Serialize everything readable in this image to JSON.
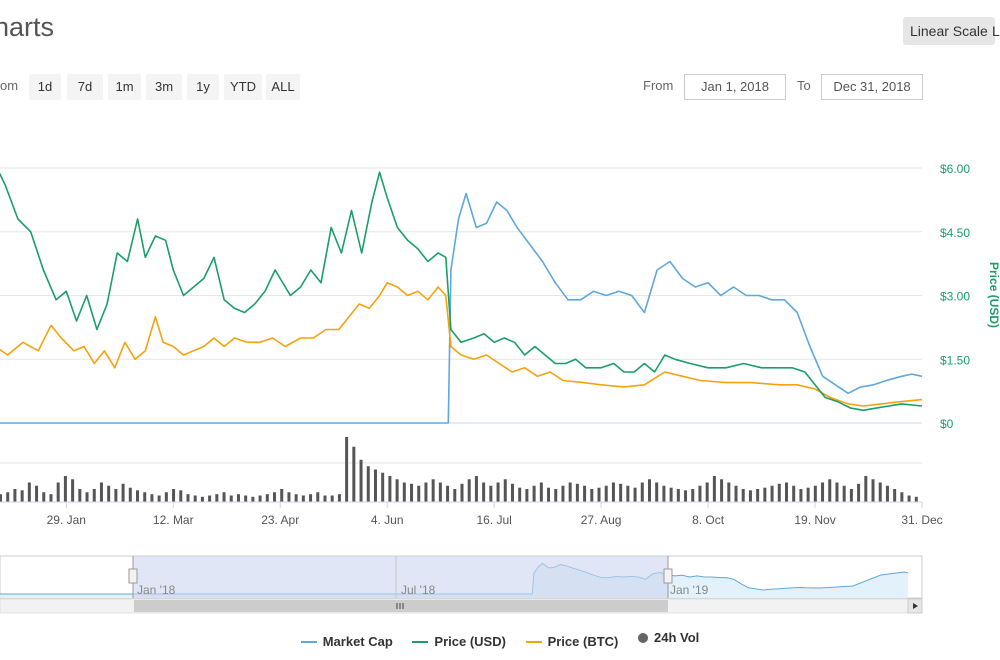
{
  "header": {
    "title": "harts"
  },
  "toolbar": {
    "linear_scale_label": "Linear Scale",
    "log_scale_label": "L",
    "zoom_label": "om",
    "zoom_buttons": [
      "1d",
      "7d",
      "1m",
      "3m",
      "1y",
      "YTD",
      "ALL"
    ],
    "from_label": "From",
    "to_label": "To",
    "from_value": "Jan 1, 2018",
    "to_value": "Dec 31, 2018"
  },
  "legend": {
    "market_cap": "Market Cap",
    "price_usd": "Price (USD)",
    "price_btc": "Price (BTC)",
    "vol": "24h Vol"
  },
  "colors": {
    "market_cap": "#5fa8dc",
    "price_usd": "#1a9e6a",
    "price_btc": "#f5a30c",
    "volume": "#555555",
    "axis_label": "#1a9e6a",
    "navigator_mask": "#ccd5ee"
  },
  "chart_data": {
    "type": "line",
    "y_axis": {
      "label": "Price (USD)",
      "ticks": [
        "$0",
        "$1.50",
        "$3.00",
        "$4.50",
        "$6.00"
      ],
      "ylim": [
        0,
        6.0
      ],
      "position": "right"
    },
    "x_axis": {
      "ticks": [
        "29. Jan",
        "12. Mar",
        "23. Apr",
        "4. Jun",
        "16. Jul",
        "27. Aug",
        "8. Oct",
        "19. Nov",
        "31. Dec"
      ],
      "range": [
        "2018-01-01",
        "2018-12-31"
      ]
    },
    "navigator": {
      "labels": [
        "Jan '18",
        "Jul '18",
        "Jan '19"
      ]
    },
    "series": [
      {
        "name": "Price (USD)",
        "points": [
          [
            "2018-01-01",
            6.1
          ],
          [
            "2018-01-05",
            5.6
          ],
          [
            "2018-01-10",
            4.8
          ],
          [
            "2018-01-15",
            4.5
          ],
          [
            "2018-01-20",
            3.6
          ],
          [
            "2018-01-25",
            2.9
          ],
          [
            "2018-01-29",
            3.1
          ],
          [
            "2018-02-02",
            2.4
          ],
          [
            "2018-02-06",
            3.0
          ],
          [
            "2018-02-10",
            2.2
          ],
          [
            "2018-02-14",
            2.8
          ],
          [
            "2018-02-18",
            4.0
          ],
          [
            "2018-02-22",
            3.8
          ],
          [
            "2018-02-26",
            4.8
          ],
          [
            "2018-03-01",
            3.9
          ],
          [
            "2018-03-05",
            4.4
          ],
          [
            "2018-03-09",
            4.3
          ],
          [
            "2018-03-12",
            3.6
          ],
          [
            "2018-03-16",
            3.0
          ],
          [
            "2018-03-20",
            3.2
          ],
          [
            "2018-03-24",
            3.4
          ],
          [
            "2018-03-28",
            3.9
          ],
          [
            "2018-04-01",
            2.9
          ],
          [
            "2018-04-05",
            2.7
          ],
          [
            "2018-04-09",
            2.6
          ],
          [
            "2018-04-13",
            2.8
          ],
          [
            "2018-04-17",
            3.1
          ],
          [
            "2018-04-21",
            3.6
          ],
          [
            "2018-04-23",
            3.4
          ],
          [
            "2018-04-27",
            3.0
          ],
          [
            "2018-05-01",
            3.2
          ],
          [
            "2018-05-05",
            3.6
          ],
          [
            "2018-05-09",
            3.3
          ],
          [
            "2018-05-13",
            4.6
          ],
          [
            "2018-05-17",
            4.0
          ],
          [
            "2018-05-21",
            5.0
          ],
          [
            "2018-05-25",
            4.0
          ],
          [
            "2018-05-29",
            5.2
          ],
          [
            "2018-06-01",
            5.9
          ],
          [
            "2018-06-04",
            5.3
          ],
          [
            "2018-06-08",
            4.6
          ],
          [
            "2018-06-12",
            4.3
          ],
          [
            "2018-06-16",
            4.1
          ],
          [
            "2018-06-20",
            3.8
          ],
          [
            "2018-06-24",
            4.0
          ],
          [
            "2018-06-27",
            3.9
          ],
          [
            "2018-06-29",
            2.2
          ],
          [
            "2018-07-03",
            1.9
          ],
          [
            "2018-07-08",
            2.0
          ],
          [
            "2018-07-12",
            2.1
          ],
          [
            "2018-07-16",
            1.9
          ],
          [
            "2018-07-20",
            2.0
          ],
          [
            "2018-07-24",
            1.9
          ],
          [
            "2018-07-28",
            1.6
          ],
          [
            "2018-08-01",
            1.8
          ],
          [
            "2018-08-05",
            1.6
          ],
          [
            "2018-08-09",
            1.4
          ],
          [
            "2018-08-13",
            1.4
          ],
          [
            "2018-08-17",
            1.5
          ],
          [
            "2018-08-21",
            1.3
          ],
          [
            "2018-08-27",
            1.3
          ],
          [
            "2018-09-01",
            1.4
          ],
          [
            "2018-09-05",
            1.2
          ],
          [
            "2018-09-09",
            1.2
          ],
          [
            "2018-09-13",
            1.4
          ],
          [
            "2018-09-17",
            1.2
          ],
          [
            "2018-09-21",
            1.6
          ],
          [
            "2018-09-25",
            1.5
          ],
          [
            "2018-10-01",
            1.4
          ],
          [
            "2018-10-08",
            1.3
          ],
          [
            "2018-10-15",
            1.3
          ],
          [
            "2018-10-22",
            1.4
          ],
          [
            "2018-10-29",
            1.3
          ],
          [
            "2018-11-05",
            1.3
          ],
          [
            "2018-11-10",
            1.3
          ],
          [
            "2018-11-15",
            1.2
          ],
          [
            "2018-11-19",
            0.9
          ],
          [
            "2018-11-23",
            0.6
          ],
          [
            "2018-11-28",
            0.5
          ],
          [
            "2018-12-03",
            0.35
          ],
          [
            "2018-12-08",
            0.3
          ],
          [
            "2018-12-13",
            0.35
          ],
          [
            "2018-12-18",
            0.4
          ],
          [
            "2018-12-23",
            0.45
          ],
          [
            "2018-12-31",
            0.4
          ]
        ]
      },
      {
        "name": "Price (BTC)",
        "points": [
          [
            "2018-01-01",
            1.8
          ],
          [
            "2018-01-06",
            1.6
          ],
          [
            "2018-01-12",
            1.9
          ],
          [
            "2018-01-18",
            1.7
          ],
          [
            "2018-01-23",
            2.3
          ],
          [
            "2018-01-27",
            2.0
          ],
          [
            "2018-02-01",
            1.7
          ],
          [
            "2018-02-05",
            1.8
          ],
          [
            "2018-02-09",
            1.4
          ],
          [
            "2018-02-13",
            1.7
          ],
          [
            "2018-02-17",
            1.3
          ],
          [
            "2018-02-21",
            1.9
          ],
          [
            "2018-02-25",
            1.5
          ],
          [
            "2018-03-01",
            1.7
          ],
          [
            "2018-03-05",
            2.5
          ],
          [
            "2018-03-08",
            1.9
          ],
          [
            "2018-03-12",
            1.8
          ],
          [
            "2018-03-16",
            1.6
          ],
          [
            "2018-03-20",
            1.7
          ],
          [
            "2018-03-24",
            1.8
          ],
          [
            "2018-03-28",
            2.0
          ],
          [
            "2018-04-01",
            1.8
          ],
          [
            "2018-04-05",
            2.0
          ],
          [
            "2018-04-10",
            1.9
          ],
          [
            "2018-04-15",
            1.9
          ],
          [
            "2018-04-20",
            2.0
          ],
          [
            "2018-04-25",
            1.8
          ],
          [
            "2018-05-01",
            2.0
          ],
          [
            "2018-05-06",
            2.0
          ],
          [
            "2018-05-11",
            2.2
          ],
          [
            "2018-05-16",
            2.2
          ],
          [
            "2018-05-20",
            2.5
          ],
          [
            "2018-05-24",
            2.8
          ],
          [
            "2018-05-28",
            2.7
          ],
          [
            "2018-06-01",
            3.0
          ],
          [
            "2018-06-04",
            3.3
          ],
          [
            "2018-06-08",
            3.2
          ],
          [
            "2018-06-12",
            3.0
          ],
          [
            "2018-06-16",
            3.1
          ],
          [
            "2018-06-20",
            2.9
          ],
          [
            "2018-06-24",
            3.2
          ],
          [
            "2018-06-27",
            3.0
          ],
          [
            "2018-06-29",
            1.8
          ],
          [
            "2018-07-03",
            1.6
          ],
          [
            "2018-07-08",
            1.5
          ],
          [
            "2018-07-13",
            1.6
          ],
          [
            "2018-07-18",
            1.4
          ],
          [
            "2018-07-23",
            1.2
          ],
          [
            "2018-07-28",
            1.3
          ],
          [
            "2018-08-02",
            1.1
          ],
          [
            "2018-08-07",
            1.2
          ],
          [
            "2018-08-12",
            1.0
          ],
          [
            "2018-08-20",
            0.95
          ],
          [
            "2018-08-27",
            0.9
          ],
          [
            "2018-09-05",
            0.85
          ],
          [
            "2018-09-13",
            0.9
          ],
          [
            "2018-09-21",
            1.2
          ],
          [
            "2018-09-28",
            1.1
          ],
          [
            "2018-10-05",
            1.0
          ],
          [
            "2018-10-15",
            0.95
          ],
          [
            "2018-10-25",
            0.95
          ],
          [
            "2018-11-05",
            0.9
          ],
          [
            "2018-11-12",
            0.9
          ],
          [
            "2018-11-19",
            0.8
          ],
          [
            "2018-11-25",
            0.6
          ],
          [
            "2018-12-02",
            0.45
          ],
          [
            "2018-12-08",
            0.4
          ],
          [
            "2018-12-15",
            0.45
          ],
          [
            "2018-12-22",
            0.5
          ],
          [
            "2018-12-31",
            0.55
          ]
        ]
      },
      {
        "name": "Market Cap",
        "points": [
          [
            "2018-01-01",
            0.0
          ],
          [
            "2018-06-28",
            0.0
          ],
          [
            "2018-06-29",
            3.6
          ],
          [
            "2018-07-02",
            4.8
          ],
          [
            "2018-07-05",
            5.4
          ],
          [
            "2018-07-09",
            4.6
          ],
          [
            "2018-07-13",
            4.7
          ],
          [
            "2018-07-17",
            5.2
          ],
          [
            "2018-07-21",
            5.0
          ],
          [
            "2018-07-25",
            4.6
          ],
          [
            "2018-07-30",
            4.2
          ],
          [
            "2018-08-04",
            3.8
          ],
          [
            "2018-08-09",
            3.3
          ],
          [
            "2018-08-14",
            2.9
          ],
          [
            "2018-08-19",
            2.9
          ],
          [
            "2018-08-24",
            3.1
          ],
          [
            "2018-08-29",
            3.0
          ],
          [
            "2018-09-03",
            3.1
          ],
          [
            "2018-09-08",
            3.0
          ],
          [
            "2018-09-13",
            2.6
          ],
          [
            "2018-09-18",
            3.6
          ],
          [
            "2018-09-23",
            3.8
          ],
          [
            "2018-09-28",
            3.4
          ],
          [
            "2018-10-03",
            3.2
          ],
          [
            "2018-10-08",
            3.3
          ],
          [
            "2018-10-13",
            3.0
          ],
          [
            "2018-10-18",
            3.2
          ],
          [
            "2018-10-23",
            3.0
          ],
          [
            "2018-10-28",
            3.0
          ],
          [
            "2018-11-02",
            2.9
          ],
          [
            "2018-11-07",
            2.9
          ],
          [
            "2018-11-12",
            2.6
          ],
          [
            "2018-11-17",
            1.8
          ],
          [
            "2018-11-22",
            1.1
          ],
          [
            "2018-11-27",
            0.9
          ],
          [
            "2018-12-02",
            0.7
          ],
          [
            "2018-12-07",
            0.85
          ],
          [
            "2018-12-12",
            0.9
          ],
          [
            "2018-12-17",
            1.0
          ],
          [
            "2018-12-23",
            1.1
          ],
          [
            "2018-12-27",
            1.15
          ],
          [
            "2018-12-31",
            1.1
          ]
        ]
      },
      {
        "name": "24h Vol",
        "relative_values": [
          0.12,
          0.15,
          0.2,
          0.18,
          0.3,
          0.25,
          0.15,
          0.12,
          0.3,
          0.4,
          0.35,
          0.2,
          0.15,
          0.2,
          0.3,
          0.25,
          0.2,
          0.28,
          0.22,
          0.18,
          0.15,
          0.12,
          0.1,
          0.15,
          0.2,
          0.18,
          0.12,
          0.1,
          0.08,
          0.1,
          0.12,
          0.15,
          0.1,
          0.12,
          0.1,
          0.08,
          0.1,
          0.12,
          0.15,
          0.2,
          0.15,
          0.12,
          0.1,
          0.12,
          0.15,
          0.1,
          0.1,
          0.12,
          1.0,
          0.85,
          0.65,
          0.55,
          0.5,
          0.45,
          0.4,
          0.35,
          0.3,
          0.28,
          0.25,
          0.3,
          0.35,
          0.3,
          0.25,
          0.2,
          0.28,
          0.35,
          0.4,
          0.3,
          0.25,
          0.3,
          0.35,
          0.28,
          0.22,
          0.2,
          0.25,
          0.3,
          0.22,
          0.2,
          0.25,
          0.3,
          0.28,
          0.25,
          0.2,
          0.22,
          0.25,
          0.3,
          0.28,
          0.25,
          0.22,
          0.3,
          0.35,
          0.3,
          0.25,
          0.22,
          0.2,
          0.18,
          0.2,
          0.25,
          0.3,
          0.4,
          0.35,
          0.3,
          0.25,
          0.2,
          0.18,
          0.2,
          0.22,
          0.25,
          0.28,
          0.3,
          0.25,
          0.2,
          0.22,
          0.25,
          0.3,
          0.35,
          0.3,
          0.25,
          0.2,
          0.28,
          0.4,
          0.35,
          0.3,
          0.25,
          0.2,
          0.15,
          0.1,
          0.08
        ]
      }
    ],
    "grid": true,
    "legend_position": "bottom"
  }
}
